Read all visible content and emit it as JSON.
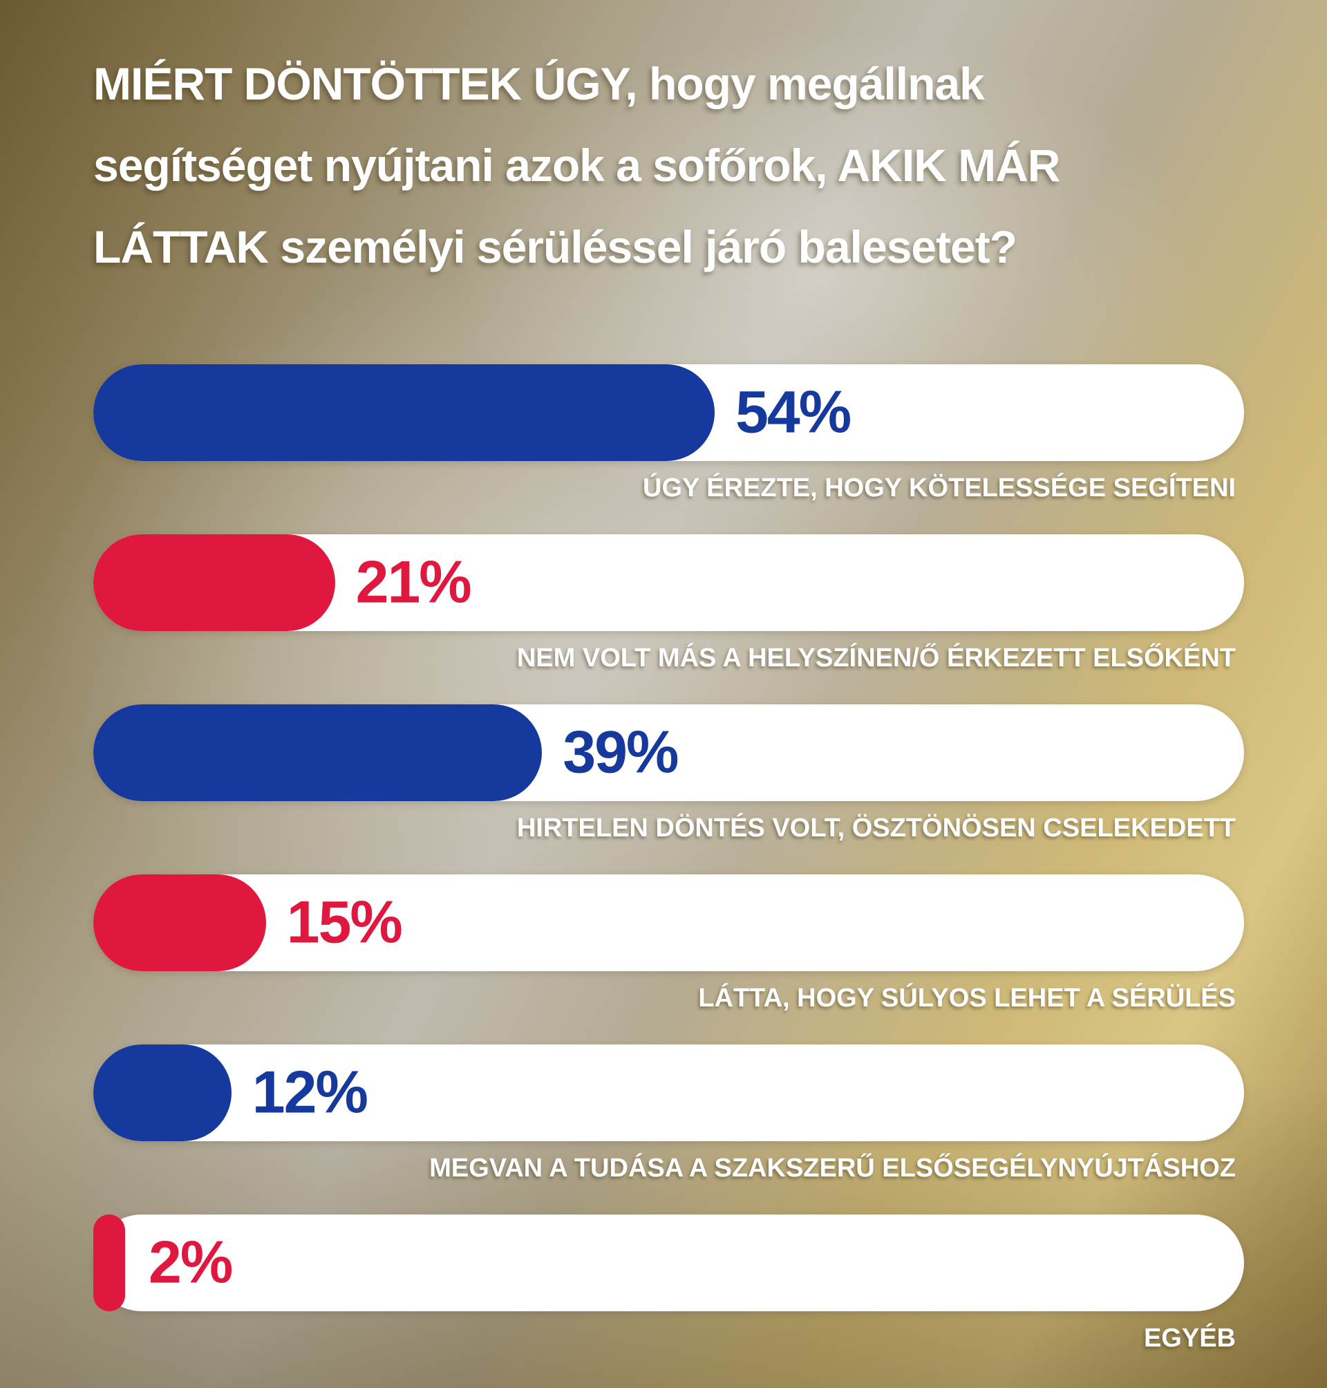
{
  "page": {
    "title_lines": [
      "MIÉRT DÖNTÖTTEK ÚGY, hogy megállnak",
      "segítséget nyújtani azok a sofőrok, AKIK MÁR",
      "LÁTTAK személyi sérüléssel járó balesetet?"
    ]
  },
  "chart_data": {
    "type": "bar",
    "orientation": "horizontal",
    "title": "MIÉRT DÖNTÖTTEK ÚGY, hogy megállnak segítséget nyújtani azok a sofőrok, AKIK MÁR LÁTTAK személyi sérüléssel járó balesetet?",
    "unit": "%",
    "xlim": [
      0,
      100
    ],
    "grid": false,
    "legend": false,
    "categories": [
      "ÚGY ÉREZTE, HOGY KÖTELESSÉGE SEGÍTENI",
      "NEM VOLT MÁS A HELYSZÍNEN/Ő ÉRKEZETT ELSŐKÉNT",
      "HIRTELEN DÖNTÉS VOLT, ÖSZTÖNÖSEN CSELEKEDETT",
      "LÁTTA, HOGY SÚLYOS LEHET A SÉRÜLÉS",
      "MEGVAN A TUDÁSA A SZAKSZERŰ ELSŐSEGÉLYNYÚJTÁSHOZ",
      "EGYÉB"
    ],
    "values": [
      54,
      21,
      39,
      15,
      12,
      2
    ],
    "colors": {
      "blue": "#15399d",
      "red": "#e0173f",
      "track": "#ffffff",
      "text": "#ffffff"
    },
    "items": [
      {
        "label": "ÚGY ÉREZTE, HOGY KÖTELESSÉGE SEGÍTENI",
        "value": 54,
        "value_label": "54%",
        "color": "#15399d"
      },
      {
        "label": "NEM VOLT MÁS A HELYSZÍNEN/Ő ÉRKEZETT ELSŐKÉNT",
        "value": 21,
        "value_label": "21%",
        "color": "#e0173f"
      },
      {
        "label": "HIRTELEN DÖNTÉS VOLT, ÖSZTÖNÖSEN CSELEKEDETT",
        "value": 39,
        "value_label": "39%",
        "color": "#15399d"
      },
      {
        "label": "LÁTTA, HOGY SÚLYOS LEHET A SÉRÜLÉS",
        "value": 15,
        "value_label": "15%",
        "color": "#e0173f"
      },
      {
        "label": "MEGVAN A TUDÁSA A SZAKSZERŰ ELSŐSEGÉLYNYÚJTÁSHOZ",
        "value": 12,
        "value_label": "12%",
        "color": "#15399d"
      },
      {
        "label": "EGYÉB",
        "value": 2,
        "value_label": "2%",
        "color": "#e0173f"
      }
    ]
  }
}
